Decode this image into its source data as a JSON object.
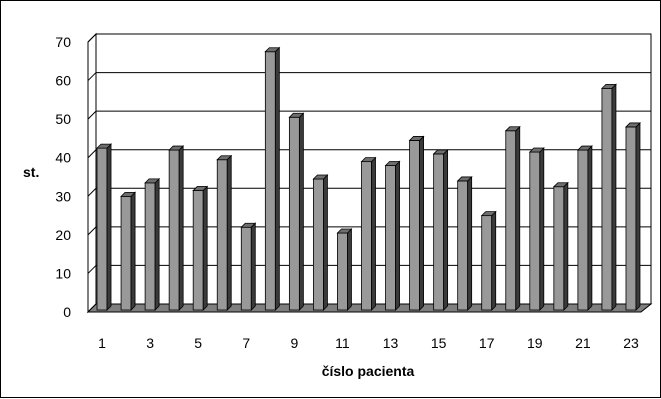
{
  "chart_data": {
    "type": "bar",
    "title": "",
    "xlabel": "číslo pacienta",
    "ylabel": "st.",
    "ylim": [
      0,
      70
    ],
    "yticks": [
      0,
      10,
      20,
      30,
      40,
      50,
      60,
      70
    ],
    "grid": true,
    "style": "3d-columns",
    "colors": {
      "bar_front": "#999999",
      "bar_side": "#3a3a3a",
      "bar_top": "#6e6e6e",
      "grid": "#000000",
      "floor": "#7f7f7f"
    },
    "categories": [
      "1",
      "2",
      "3",
      "4",
      "5",
      "6",
      "7",
      "8",
      "9",
      "10",
      "11",
      "12",
      "13",
      "14",
      "15",
      "16",
      "17",
      "18",
      "19",
      "20",
      "21",
      "22",
      "23"
    ],
    "category_labels_shown": [
      "1",
      "3",
      "5",
      "7",
      "9",
      "11",
      "13",
      "15",
      "17",
      "19",
      "21",
      "23"
    ],
    "values": [
      43,
      30.5,
      34,
      42.5,
      32,
      40,
      22.5,
      68,
      51,
      35,
      21,
      39.5,
      38.5,
      45,
      41.5,
      34.5,
      25.5,
      47.5,
      42,
      33,
      42.5,
      58.5,
      48.5
    ]
  }
}
